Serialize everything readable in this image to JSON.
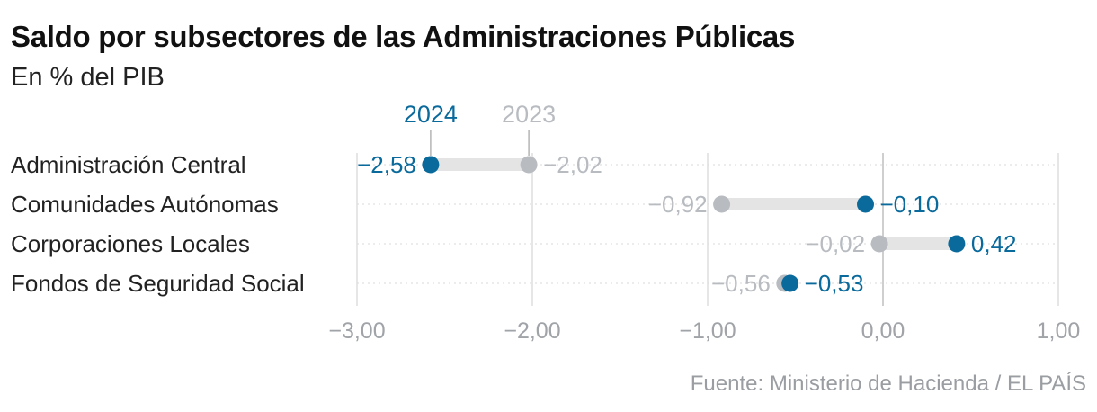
{
  "title": "Saldo por subsectores de las Administraciones Públicas",
  "subtitle": "En % del PIB",
  "source": "Fuente: Ministerio de Hacienda / EL PAÍS",
  "colors": {
    "y2024": "#0b6a9c",
    "y2023": "#b8bcc1",
    "connector": "#e4e4e4",
    "grid": "#dddddd",
    "zero": "#cfcfcf",
    "ticks": "#a0a3a7",
    "label": "#222222"
  },
  "chart_data": {
    "type": "dumbbell",
    "series": [
      {
        "name": "2024",
        "values": [
          -2.58,
          -0.1,
          0.42,
          -0.53
        ],
        "labels": [
          "−2,58",
          "−0,10",
          "0,42",
          "−0,53"
        ]
      },
      {
        "name": "2023",
        "values": [
          -2.02,
          -0.92,
          -0.02,
          -0.56
        ],
        "labels": [
          "−2,02",
          "−0,92",
          "−0,02",
          "−0,56"
        ]
      }
    ],
    "categories": [
      "Administración Central",
      "Comunidades Autónomas",
      "Corporaciones Locales",
      "Fondos de Seguridad Social"
    ],
    "xlim": [
      -3.0,
      1.0
    ],
    "xticks": [
      -3.0,
      -2.0,
      -1.0,
      0.0,
      1.0
    ],
    "xtick_labels": [
      "−3,00",
      "−2,00",
      "−1,00",
      "0,00",
      "1,00"
    ],
    "legend": [
      {
        "name": "2024",
        "anchor_value": -2.58
      },
      {
        "name": "2023",
        "anchor_value": -2.02
      }
    ]
  }
}
